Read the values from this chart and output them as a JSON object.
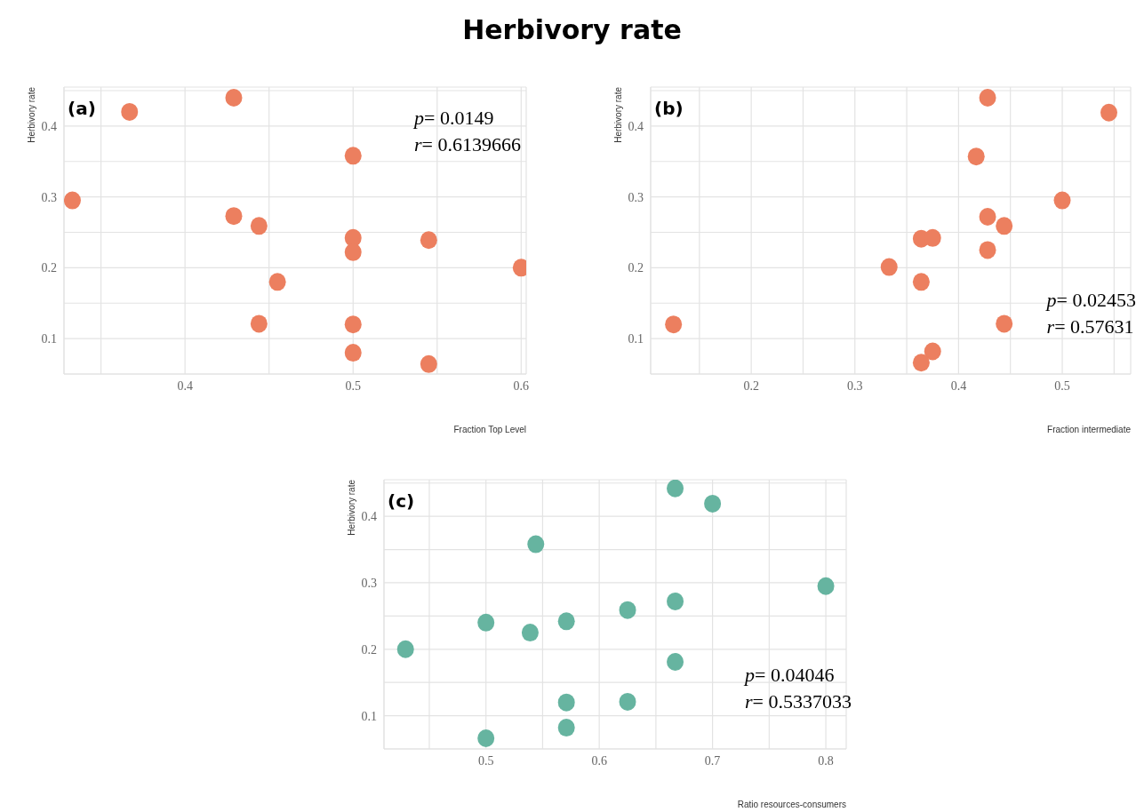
{
  "chart_data": [
    {
      "type": "scatter",
      "title": "Herbivory rate",
      "xlabel": "Fraction Top Level",
      "ylabel": "Herbivory rate",
      "annotations": [
        "(a)",
        "p= 0.0149",
        "r= 0.6139666"
      ],
      "x": [
        0.367,
        0.429,
        0.333,
        0.429,
        0.444,
        0.5,
        0.5,
        0.5,
        0.545,
        0.6,
        0.455,
        0.444,
        0.5,
        0.5,
        0.545
      ],
      "series": [
        {
          "color": "#ec7f5f",
          "values": [
            0.42,
            0.44,
            0.295,
            0.273,
            0.259,
            0.358,
            0.242,
            0.222,
            0.239,
            0.2,
            0.18,
            0.121,
            0.12,
            0.08,
            0.064
          ]
        }
      ],
      "xlim": [
        0.328,
        0.603
      ],
      "xticks": [
        {
          "value": 0.35,
          "label": null
        },
        0.4,
        {
          "value": 0.45,
          "label": null
        },
        0.5,
        {
          "value": 0.55,
          "label": null
        },
        0.6
      ],
      "ylim": [
        0.05,
        0.455
      ],
      "yticks": [
        0.1,
        {
          "value": 0.15,
          "label": null
        },
        0.2,
        {
          "value": 0.25,
          "label": null
        },
        0.3,
        {
          "value": 0.35,
          "label": null
        },
        0.4,
        {
          "value": 0.45,
          "label": null
        }
      ],
      "grid": true,
      "marker": "circle"
    },
    {
      "type": "scatter",
      "xlabel": "Fraction intermediate",
      "ylabel": "Herbivory rate",
      "annotations": [
        "(b)",
        "p= 0.02453",
        "r= 0.57631"
      ],
      "x": [
        0.428,
        0.545,
        0.417,
        0.5,
        0.428,
        0.444,
        0.364,
        0.375,
        0.428,
        0.333,
        0.364,
        0.125,
        0.444,
        0.375,
        0.364
      ],
      "series": [
        {
          "color": "#ec7f5f",
          "values": [
            0.44,
            0.419,
            0.357,
            0.295,
            0.272,
            0.259,
            0.241,
            0.242,
            0.225,
            0.201,
            0.18,
            0.12,
            0.121,
            0.082,
            0.066
          ]
        }
      ],
      "xlim": [
        0.103,
        0.566
      ],
      "xticks": [
        {
          "value": 0.15,
          "label": null
        },
        0.2,
        {
          "value": 0.25,
          "label": null
        },
        0.3,
        {
          "value": 0.35,
          "label": null
        },
        0.4,
        {
          "value": 0.45,
          "label": null
        },
        0.5,
        {
          "value": 0.55,
          "label": null
        }
      ],
      "ylim": [
        0.05,
        0.455
      ],
      "yticks": [
        0.1,
        {
          "value": 0.15,
          "label": null
        },
        0.2,
        {
          "value": 0.25,
          "label": null
        },
        0.3,
        {
          "value": 0.35,
          "label": null
        },
        0.4,
        {
          "value": 0.45,
          "label": null
        }
      ],
      "grid": true,
      "marker": "circle"
    },
    {
      "type": "scatter",
      "xlabel": "Ratio resources-consumers",
      "ylabel": "Herbivory rate",
      "annotations": [
        "(c)",
        "p= 0.04046",
        "r= 0.5337033"
      ],
      "x": [
        0.667,
        0.7,
        0.544,
        0.8,
        0.667,
        0.625,
        0.5,
        0.571,
        0.539,
        0.429,
        0.667,
        0.571,
        0.625,
        0.571,
        0.5
      ],
      "series": [
        {
          "color": "#66b4a0",
          "values": [
            0.442,
            0.419,
            0.358,
            0.295,
            0.272,
            0.259,
            0.24,
            0.242,
            0.225,
            0.2,
            0.181,
            0.12,
            0.121,
            0.082,
            0.066
          ]
        }
      ],
      "xlim": [
        0.41,
        0.818
      ],
      "xticks": [
        {
          "value": 0.45,
          "label": null
        },
        0.5,
        {
          "value": 0.55,
          "label": null
        },
        0.6,
        {
          "value": 0.65,
          "label": null
        },
        0.7,
        {
          "value": 0.75,
          "label": null
        },
        0.8
      ],
      "ylim": [
        0.05,
        0.455
      ],
      "yticks": [
        0.1,
        {
          "value": 0.15,
          "label": null
        },
        0.2,
        {
          "value": 0.25,
          "label": null
        },
        0.3,
        {
          "value": 0.35,
          "label": null
        },
        0.4,
        {
          "value": 0.45,
          "label": null
        }
      ],
      "grid": true,
      "marker": "circle"
    }
  ]
}
